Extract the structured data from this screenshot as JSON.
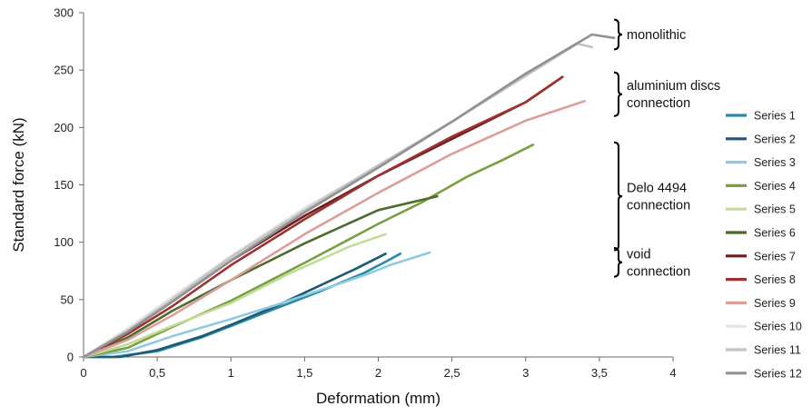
{
  "chart_data": {
    "type": "line",
    "title": "",
    "xlabel": "Deformation (mm)",
    "ylabel": "Standard force (kN)",
    "xlim": [
      0,
      4
    ],
    "ylim": [
      0,
      300
    ],
    "x_ticks": [
      "0",
      "0,5",
      "1",
      "1,5",
      "2",
      "2,5",
      "3",
      "3,5",
      "4"
    ],
    "x_tick_values": [
      0,
      0.5,
      1,
      1.5,
      2,
      2.5,
      3,
      3.5,
      4
    ],
    "y_ticks": [
      "0",
      "50",
      "100",
      "150",
      "200",
      "250",
      "300"
    ],
    "y_tick_values": [
      0,
      50,
      100,
      150,
      200,
      250,
      300
    ],
    "grid": false,
    "legend_position": "right",
    "series": [
      {
        "name": "Series 1",
        "color": "#2a8aa6",
        "x": [
          0,
          0.2,
          0.5,
          0.8,
          1,
          1.3,
          1.6,
          1.9,
          2.05,
          2.15
        ],
        "y": [
          0,
          0,
          5,
          17,
          27,
          42,
          57,
          73,
          83,
          90
        ]
      },
      {
        "name": "Series 2",
        "color": "#1d5b73",
        "x": [
          0,
          0.25,
          0.5,
          0.8,
          1,
          1.3,
          1.6,
          1.85,
          2.05
        ],
        "y": [
          0,
          0,
          6,
          18,
          28,
          44,
          62,
          77,
          90
        ]
      },
      {
        "name": "Series 3",
        "color": "#8fcae0",
        "x": [
          0,
          0.3,
          0.6,
          1,
          1.3,
          1.6,
          1.9,
          2.1,
          2.35
        ],
        "y": [
          0,
          5,
          18,
          33,
          45,
          58,
          71,
          81,
          91
        ]
      },
      {
        "name": "Series 4",
        "color": "#78a040",
        "x": [
          0,
          0.3,
          0.6,
          1,
          1.5,
          2,
          2.3,
          2.6,
          2.85,
          3.05
        ],
        "y": [
          0,
          8,
          26,
          49,
          82,
          116,
          135,
          157,
          172,
          185
        ]
      },
      {
        "name": "Series 5",
        "color": "#c2dc98",
        "x": [
          0,
          0.3,
          0.6,
          1,
          1.4,
          1.8,
          2.05
        ],
        "y": [
          0,
          11,
          27,
          47,
          73,
          96,
          107
        ]
      },
      {
        "name": "Series 6",
        "color": "#4e6b2d",
        "x": [
          0,
          0.3,
          0.6,
          1,
          1.5,
          2,
          2.4
        ],
        "y": [
          0,
          17,
          40,
          67,
          99,
          128,
          140
        ]
      },
      {
        "name": "Series 7",
        "color": "#6a1f1f",
        "x": [
          0,
          0.3,
          0.6,
          1,
          1.5,
          2,
          2.5,
          3,
          3.25
        ],
        "y": [
          0,
          22,
          48,
          84,
          123,
          158,
          190,
          222,
          244
        ]
      },
      {
        "name": "Series 8",
        "color": "#9e3231",
        "x": [
          0,
          0.3,
          0.6,
          1,
          1.5,
          2,
          2.5,
          3,
          3.25
        ],
        "y": [
          0,
          20,
          44,
          80,
          120,
          158,
          192,
          222,
          244
        ]
      },
      {
        "name": "Series 9",
        "color": "#dc9e9a",
        "x": [
          0,
          0.3,
          0.6,
          1,
          1.5,
          2,
          2.5,
          3,
          3.4
        ],
        "y": [
          0,
          15,
          36,
          67,
          107,
          143,
          177,
          206,
          223
        ]
      },
      {
        "name": "Series 10",
        "color": "#e4e4e4",
        "x": [
          0,
          0.3,
          0.6,
          1,
          1.5,
          2,
          2.05
        ],
        "y": [
          0,
          25,
          52,
          88,
          130,
          166,
          168
        ]
      },
      {
        "name": "Series 11",
        "color": "#c3c3c3",
        "x": [
          0,
          0.3,
          0.6,
          1,
          1.5,
          2,
          2.5,
          3,
          3.35,
          3.45
        ],
        "y": [
          0,
          23,
          50,
          87,
          128,
          167,
          205,
          245,
          273,
          270
        ]
      },
      {
        "name": "Series 12",
        "color": "#919191",
        "x": [
          0,
          0.3,
          0.6,
          1,
          1.5,
          2,
          2.5,
          3,
          3.45,
          3.6
        ],
        "y": [
          0,
          22,
          48,
          84,
          126,
          165,
          205,
          247,
          281,
          278
        ]
      }
    ],
    "annotations": [
      {
        "lines": [
          "monolithic"
        ],
        "y_range": [
          268,
          294
        ]
      },
      {
        "lines": [
          "aluminium discs",
          "connection"
        ],
        "y_range": [
          210,
          248
        ]
      },
      {
        "lines": [
          "Delo 4494",
          "connection"
        ],
        "y_range": [
          93,
          187
        ]
      },
      {
        "lines": [
          "void",
          "connection"
        ],
        "y_range": [
          70,
          95
        ]
      }
    ]
  }
}
